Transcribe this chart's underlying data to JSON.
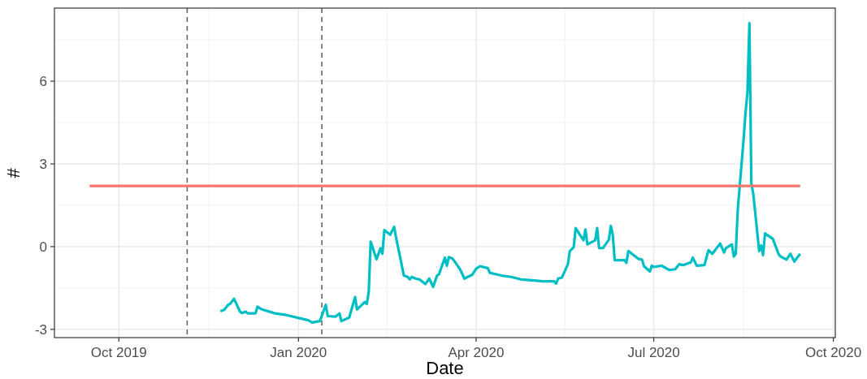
{
  "chart_data": {
    "type": "line",
    "xlabel": "Date",
    "ylabel": "#",
    "xlim": [
      "2019-08-29",
      "2020-10-02"
    ],
    "ylim": [
      -3.3,
      8.65
    ],
    "xticks": [
      {
        "value": "2019-10-01",
        "label": "Oct 2019"
      },
      {
        "value": "2020-01-01",
        "label": "Jan 2020"
      },
      {
        "value": "2020-04-01",
        "label": "Apr 2020"
      },
      {
        "value": "2020-07-01",
        "label": "Jul 2020"
      },
      {
        "value": "2020-10-01",
        "label": "Oct 2020"
      }
    ],
    "yticks": [
      -3,
      0,
      3,
      6
    ],
    "grid": true,
    "ref_lines": [
      {
        "axis": "x",
        "value": "2019-11-05",
        "color": "#666666",
        "line_style": "dashed"
      },
      {
        "axis": "x",
        "value": "2020-01-13",
        "color": "#666666",
        "line_style": "dashed"
      }
    ],
    "series": [
      {
        "color": "#00bfc4",
        "x": [
          "2019-11-22",
          "2019-11-24",
          "2019-11-26",
          "2019-11-27",
          "2019-11-29",
          "2019-12-02",
          "2019-12-03",
          "2019-12-05",
          "2019-12-06",
          "2019-12-10",
          "2019-12-11",
          "2019-12-13",
          "2019-12-20",
          "2019-12-25",
          "2020-01-06",
          "2020-01-08",
          "2020-01-12",
          "2020-01-15",
          "2020-01-16",
          "2020-01-20",
          "2020-01-22",
          "2020-01-23",
          "2020-01-27",
          "2020-01-30",
          "2020-01-31",
          "2020-02-04",
          "2020-02-05",
          "2020-02-06",
          "2020-02-07",
          "2020-02-10",
          "2020-02-12",
          "2020-02-13",
          "2020-02-14",
          "2020-02-17",
          "2020-02-19",
          "2020-02-20",
          "2020-02-24",
          "2020-02-26",
          "2020-02-27",
          "2020-02-28",
          "2020-03-01",
          "2020-03-03",
          "2020-03-06",
          "2020-03-08",
          "2020-03-10",
          "2020-03-12",
          "2020-03-13",
          "2020-03-16",
          "2020-03-17",
          "2020-03-18",
          "2020-03-20",
          "2020-03-22",
          "2020-03-24",
          "2020-03-26",
          "2020-03-30",
          "2020-04-01",
          "2020-04-03",
          "2020-04-07",
          "2020-04-08",
          "2020-04-14",
          "2020-04-19",
          "2020-04-24",
          "2020-05-01",
          "2020-05-05",
          "2020-05-11",
          "2020-05-12",
          "2020-05-13",
          "2020-05-15",
          "2020-05-18",
          "2020-05-19",
          "2020-05-21",
          "2020-05-22",
          "2020-05-26",
          "2020-05-27",
          "2020-05-28",
          "2020-06-01",
          "2020-06-02",
          "2020-06-03",
          "2020-06-05",
          "2020-06-08",
          "2020-06-09",
          "2020-06-10",
          "2020-06-11",
          "2020-06-16",
          "2020-06-17",
          "2020-06-18",
          "2020-06-23",
          "2020-06-25",
          "2020-06-26",
          "2020-06-29",
          "2020-06-30",
          "2020-07-01",
          "2020-07-05",
          "2020-07-09",
          "2020-07-12",
          "2020-07-14",
          "2020-07-16",
          "2020-07-20",
          "2020-07-21",
          "2020-07-23",
          "2020-07-27",
          "2020-07-29",
          "2020-07-31",
          "2020-08-04",
          "2020-08-06",
          "2020-08-07",
          "2020-08-10",
          "2020-08-11",
          "2020-08-12",
          "2020-08-13",
          "2020-08-16",
          "2020-08-17",
          "2020-08-18",
          "2020-08-19",
          "2020-08-20",
          "2020-08-21",
          "2020-08-24",
          "2020-08-25",
          "2020-08-26",
          "2020-08-27",
          "2020-08-31",
          "2020-09-03",
          "2020-09-04",
          "2020-09-07",
          "2020-09-09",
          "2020-09-11",
          "2020-09-14"
        ],
        "values": [
          -2.34,
          -2.29,
          -2.11,
          -2.08,
          -1.89,
          -2.35,
          -2.41,
          -2.36,
          -2.42,
          -2.42,
          -2.18,
          -2.27,
          -2.42,
          -2.47,
          -2.67,
          -2.75,
          -2.7,
          -2.11,
          -2.52,
          -2.54,
          -2.42,
          -2.7,
          -2.57,
          -1.83,
          -2.28,
          -2.01,
          -2.08,
          -1.64,
          0.18,
          -0.46,
          -0.06,
          -0.26,
          0.6,
          0.43,
          0.72,
          0.33,
          -1.05,
          -1.1,
          -1.19,
          -1.1,
          -1.16,
          -1.19,
          -1.36,
          -1.16,
          -1.46,
          -1.05,
          -1.0,
          -0.4,
          -0.69,
          -0.38,
          -0.44,
          -0.64,
          -0.85,
          -1.16,
          -1.02,
          -0.8,
          -0.71,
          -0.78,
          -0.95,
          -1.05,
          -1.1,
          -1.19,
          -1.23,
          -1.26,
          -1.26,
          -1.34,
          -1.16,
          -1.12,
          -0.64,
          -0.16,
          -0.02,
          0.67,
          0.23,
          0.62,
          0.08,
          0.23,
          0.67,
          -0.05,
          -0.05,
          0.25,
          0.75,
          0.44,
          -0.49,
          -0.49,
          -0.59,
          -0.16,
          -0.44,
          -0.47,
          -0.71,
          -0.9,
          -0.69,
          -0.74,
          -0.69,
          -0.85,
          -0.82,
          -0.64,
          -0.67,
          -0.57,
          -0.4,
          -0.69,
          -0.67,
          -0.13,
          -0.26,
          0.11,
          -0.21,
          -0.05,
          0.08,
          -0.36,
          -0.26,
          1.31,
          3.87,
          4.85,
          5.6,
          8.1,
          2.29,
          1.9,
          -0.16,
          0.04,
          -0.31,
          0.48,
          0.28,
          -0.28,
          -0.36,
          -0.47,
          -0.26,
          -0.54,
          -0.26
        ]
      },
      {
        "color": "#f8766d",
        "x": [
          "2019-09-16",
          "2020-09-14"
        ],
        "values": [
          2.2,
          2.2
        ]
      }
    ]
  }
}
